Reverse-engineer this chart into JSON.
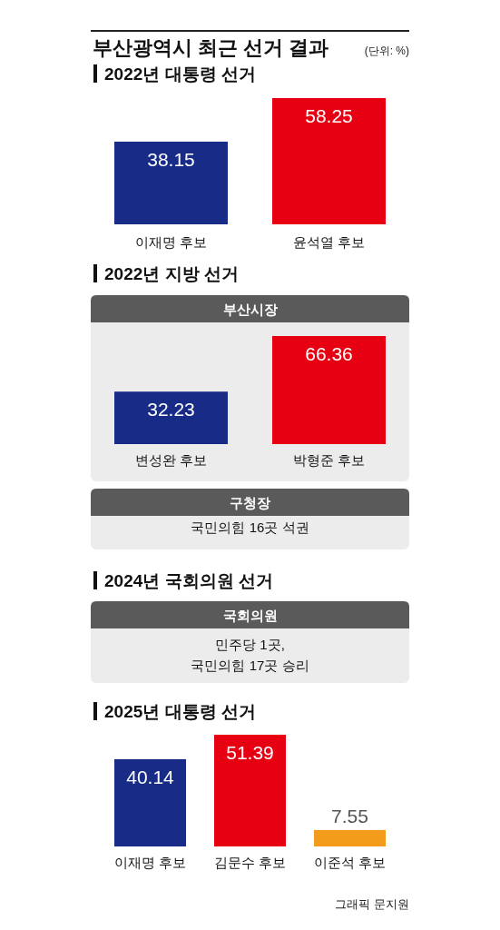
{
  "chart_data": [
    {
      "type": "other",
      "title": "부산광역시 최근 선거 결과",
      "annotations": [
        "(단위: %)"
      ]
    },
    {
      "type": "bar",
      "title": "2022년 대통령 선거",
      "categories": [
        "이재명 후보",
        "윤석열 후보"
      ],
      "values": [
        38.15,
        58.25
      ],
      "colors": [
        "#172b87",
        "#e60012"
      ],
      "data_labels": true
    },
    {
      "type": "bar",
      "title": "2022년 지방 선거",
      "subtitle": "부산시장",
      "categories": [
        "변성완 후보",
        "박형준 후보"
      ],
      "values": [
        32.23,
        66.36
      ],
      "colors": [
        "#172b87",
        "#e60012"
      ],
      "data_labels": true
    },
    {
      "type": "other",
      "title": "구청장",
      "annotations": [
        "국민의힘 16곳 석권"
      ]
    },
    {
      "type": "other",
      "title": "2024년 국회의원 선거",
      "subtitle": "국회의원",
      "annotations": [
        "민주당 1곳,\n국민의힘 17곳 승리"
      ]
    },
    {
      "type": "bar",
      "title": "2025년 대통령 선거",
      "categories": [
        "이재명 후보",
        "김문수 후보",
        "이준석 후보"
      ],
      "values": [
        40.14,
        51.39,
        7.55
      ],
      "colors": [
        "#172b87",
        "#e60012",
        "#f39c1c"
      ],
      "data_labels": true,
      "annotations": [
        "그래픽 문지원"
      ]
    }
  ]
}
